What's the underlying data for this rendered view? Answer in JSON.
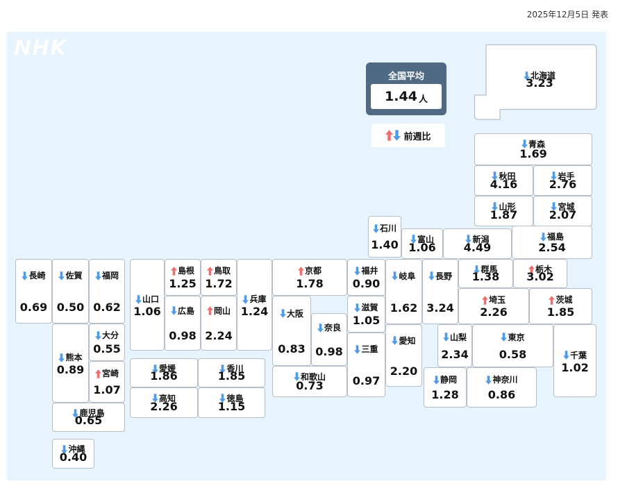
{
  "header": {
    "date": "2025年12月5日 発表"
  },
  "logo": "NHK",
  "national_average": {
    "title": "全国平均",
    "value": "1.44",
    "unit": "人"
  },
  "legend": {
    "label": "前週比"
  },
  "colors": {
    "up": "#f26d6d",
    "down": "#4e9be6",
    "background": "#e8f4fd",
    "avg_panel": "#4f6a82"
  },
  "prefectures": [
    {
      "id": "hokkaido",
      "name": "北海道",
      "value": "3.23",
      "trend": "down"
    },
    {
      "id": "aomori",
      "name": "青森",
      "value": "1.69",
      "trend": "down"
    },
    {
      "id": "akita",
      "name": "秋田",
      "value": "4.16",
      "trend": "down"
    },
    {
      "id": "iwate",
      "name": "岩手",
      "value": "2.76",
      "trend": "down"
    },
    {
      "id": "yamagata",
      "name": "山形",
      "value": "1.87",
      "trend": "down"
    },
    {
      "id": "miyagi",
      "name": "宮城",
      "value": "2.07",
      "trend": "down"
    },
    {
      "id": "ishikawa",
      "name": "石川",
      "value": "1.40",
      "trend": "down"
    },
    {
      "id": "toyama",
      "name": "富山",
      "value": "1.06",
      "trend": "down"
    },
    {
      "id": "niigata",
      "name": "新潟",
      "value": "4.49",
      "trend": "down"
    },
    {
      "id": "fukushima",
      "name": "福島",
      "value": "2.54",
      "trend": "down"
    },
    {
      "id": "nagasaki",
      "name": "長崎",
      "value": "0.69",
      "trend": "down"
    },
    {
      "id": "saga",
      "name": "佐賀",
      "value": "0.50",
      "trend": "down"
    },
    {
      "id": "fukuoka",
      "name": "福岡",
      "value": "0.62",
      "trend": "down"
    },
    {
      "id": "yamaguchi",
      "name": "山口",
      "value": "1.06",
      "trend": "down"
    },
    {
      "id": "shimane",
      "name": "島根",
      "value": "1.25",
      "trend": "up"
    },
    {
      "id": "tottori",
      "name": "鳥取",
      "value": "1.72",
      "trend": "up"
    },
    {
      "id": "hyogo",
      "name": "兵庫",
      "value": "1.24",
      "trend": "down"
    },
    {
      "id": "kyoto",
      "name": "京都",
      "value": "1.78",
      "trend": "up"
    },
    {
      "id": "fukui",
      "name": "福井",
      "value": "0.90",
      "trend": "down"
    },
    {
      "id": "gifu",
      "name": "岐阜",
      "value": "1.62",
      "trend": "down"
    },
    {
      "id": "nagano",
      "name": "長野",
      "value": "3.24",
      "trend": "down"
    },
    {
      "id": "gunma",
      "name": "群馬",
      "value": "1.38",
      "trend": "down"
    },
    {
      "id": "tochigi",
      "name": "栃木",
      "value": "3.02",
      "trend": "up"
    },
    {
      "id": "hiroshima",
      "name": "広島",
      "value": "0.98",
      "trend": "down"
    },
    {
      "id": "okayama",
      "name": "岡山",
      "value": "2.24",
      "trend": "up"
    },
    {
      "id": "shiga",
      "name": "滋賀",
      "value": "1.05",
      "trend": "down"
    },
    {
      "id": "saitama",
      "name": "埼玉",
      "value": "2.26",
      "trend": "up"
    },
    {
      "id": "ibaraki",
      "name": "茨城",
      "value": "1.85",
      "trend": "up"
    },
    {
      "id": "osaka",
      "name": "大阪",
      "value": "0.83",
      "trend": "down"
    },
    {
      "id": "nara",
      "name": "奈良",
      "value": "0.98",
      "trend": "down"
    },
    {
      "id": "oita",
      "name": "大分",
      "value": "0.55",
      "trend": "down"
    },
    {
      "id": "kumamoto",
      "name": "熊本",
      "value": "0.89",
      "trend": "down"
    },
    {
      "id": "miyazaki",
      "name": "宮崎",
      "value": "1.07",
      "trend": "up"
    },
    {
      "id": "ehime",
      "name": "愛媛",
      "value": "1.86",
      "trend": "down"
    },
    {
      "id": "kagawa",
      "name": "香川",
      "value": "1.85",
      "trend": "down"
    },
    {
      "id": "yamanashi",
      "name": "山梨",
      "value": "2.34",
      "trend": "down"
    },
    {
      "id": "tokyo",
      "name": "東京",
      "value": "0.58",
      "trend": "down"
    },
    {
      "id": "chiba",
      "name": "千葉",
      "value": "1.02",
      "trend": "down"
    },
    {
      "id": "mie",
      "name": "三重",
      "value": "0.97",
      "trend": "down"
    },
    {
      "id": "aichi",
      "name": "愛知",
      "value": "2.20",
      "trend": "down"
    },
    {
      "id": "wakayama",
      "name": "和歌山",
      "value": "0.73",
      "trend": "down"
    },
    {
      "id": "kochi",
      "name": "高知",
      "value": "2.26",
      "trend": "down"
    },
    {
      "id": "tokushima",
      "name": "徳島",
      "value": "1.15",
      "trend": "down"
    },
    {
      "id": "shizuoka",
      "name": "静岡",
      "value": "1.28",
      "trend": "down"
    },
    {
      "id": "kanagawa",
      "name": "神奈川",
      "value": "0.86",
      "trend": "down"
    },
    {
      "id": "kagoshima",
      "name": "鹿児島",
      "value": "0.65",
      "trend": "down"
    },
    {
      "id": "okinawa",
      "name": "沖縄",
      "value": "0.40",
      "trend": "down"
    }
  ]
}
